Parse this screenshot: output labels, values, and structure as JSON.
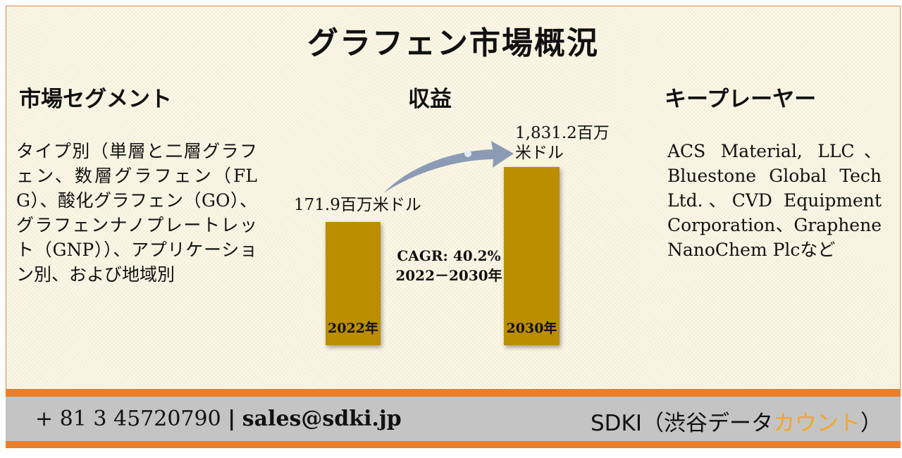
{
  "title": "グラフェン市場概況",
  "segments": {
    "heading": "市場セグメント",
    "text": "タイプ別（単層と二層グラフェン、数層グラフェン（FLG）、酸化グラフェン（GO）、グラフェンナノプレートレット（GNP））、アプリケーション別、および地域別"
  },
  "revenue": {
    "heading": "収益",
    "bars": [
      {
        "year_label": "2022年",
        "value_label": "171.9百万米ドル",
        "value": 171.9
      },
      {
        "year_label": "2030年",
        "value_label_line1": "1,831.2百万",
        "value_label_line2": "米ドル",
        "value": 1831.2
      }
    ],
    "cagr_line1": "CAGR: 40.2%",
    "cagr_line2": "2022－2030年",
    "colors": {
      "bar": "#bb8e00",
      "arrow": "#8c9bb5"
    }
  },
  "players": {
    "heading": "キープレーヤー",
    "text": "ACS Material, LLC、Bluestone Global Tech Ltd.、CVD Equipment Corporation、Graphene NanoChem Plcなど"
  },
  "footer": {
    "phone": "+ 81 3 45720790",
    "separator": "|",
    "email": "sales@sdki.jp",
    "brand_prefix": "SDKI（渋谷データ",
    "brand_accent": "カウント",
    "brand_suffix": "）",
    "colors": {
      "strip": "#e97f2a",
      "band": "#c4c4c4",
      "accent": "#f5a623"
    }
  }
}
